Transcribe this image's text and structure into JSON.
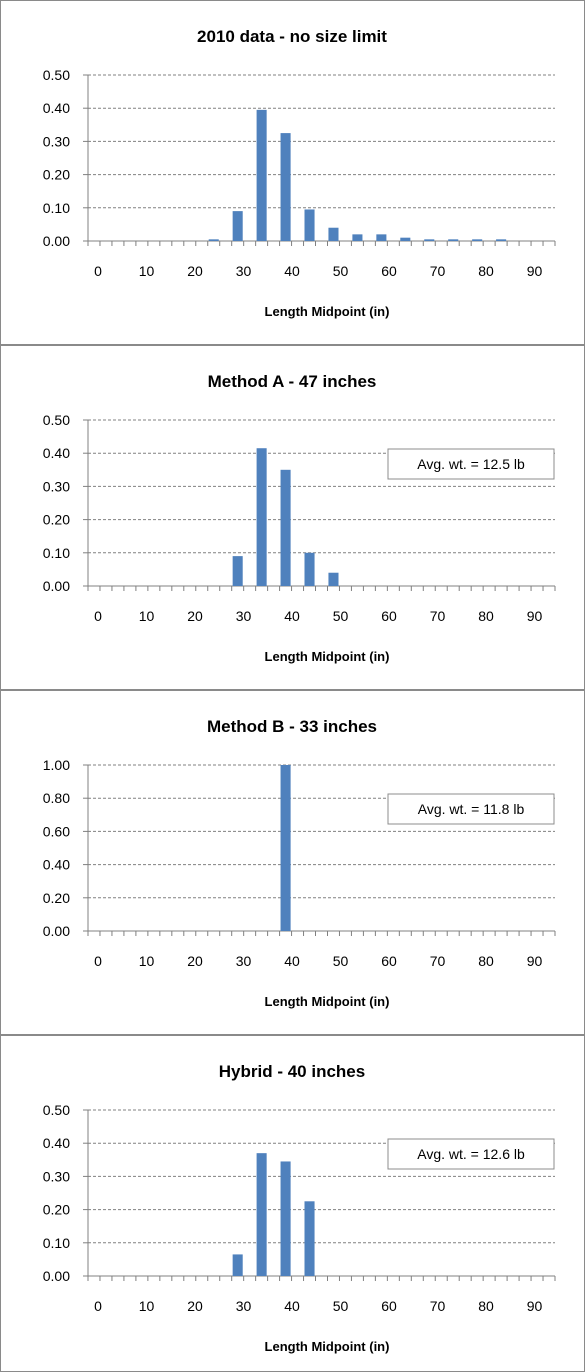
{
  "colors": {
    "bar": "#4f81bd",
    "grid": "#808080",
    "frame": "#8a8a8a"
  },
  "chart_data": [
    {
      "type": "bar",
      "title": "2010 data - no size limit",
      "xlabel": "Length Midpoint  (in)",
      "ylabel": "",
      "ylim": [
        0,
        0.5
      ],
      "yticks": [
        "0.00",
        "0.10",
        "0.20",
        "0.30",
        "0.40",
        "0.50"
      ],
      "xticks": [
        "0",
        "10",
        "20",
        "30",
        "40",
        "50",
        "60",
        "70",
        "80",
        "90"
      ],
      "x": [
        0,
        2.5,
        5,
        7.5,
        10,
        12.5,
        15,
        17.5,
        20,
        22.5,
        25,
        27.5,
        30,
        32.5,
        35,
        37.5,
        40,
        42.5,
        45,
        47.5,
        50,
        52.5,
        55,
        57.5,
        60,
        62.5,
        65,
        67.5,
        70,
        72.5,
        75,
        77.5,
        80,
        82.5,
        85,
        87.5,
        90,
        92.5,
        95
      ],
      "values": [
        0,
        0,
        0,
        0,
        0,
        0,
        0,
        0,
        0,
        0,
        0.005,
        0,
        0.09,
        0,
        0.395,
        0,
        0.325,
        0,
        0.095,
        0,
        0.04,
        0,
        0.02,
        0,
        0.02,
        0,
        0.01,
        0,
        0.005,
        0,
        0.005,
        0,
        0.005,
        0,
        0.005,
        0,
        0,
        0,
        0
      ],
      "annotation": ""
    },
    {
      "type": "bar",
      "title": "Method A - 47 inches",
      "xlabel": "Length Midpoint  (in)",
      "ylabel": "",
      "ylim": [
        0,
        0.5
      ],
      "yticks": [
        "0.00",
        "0.10",
        "0.20",
        "0.30",
        "0.40",
        "0.50"
      ],
      "xticks": [
        "0",
        "10",
        "20",
        "30",
        "40",
        "50",
        "60",
        "70",
        "80",
        "90"
      ],
      "values": [
        0,
        0,
        0,
        0,
        0,
        0,
        0,
        0,
        0,
        0,
        0,
        0,
        0.09,
        0,
        0.415,
        0,
        0.35,
        0,
        0.1,
        0,
        0.04,
        0,
        0,
        0,
        0,
        0,
        0,
        0,
        0,
        0,
        0,
        0,
        0,
        0,
        0,
        0,
        0,
        0,
        0
      ],
      "annotation": "Avg. wt.  = 12.5 lb"
    },
    {
      "type": "bar",
      "title": "Method B - 33 inches",
      "xlabel": "Length Midpoint  (in)",
      "ylabel": "",
      "ylim": [
        0,
        1.0
      ],
      "yticks": [
        "0.00",
        "0.20",
        "0.40",
        "0.60",
        "0.80",
        "1.00"
      ],
      "xticks": [
        "0",
        "10",
        "20",
        "30",
        "40",
        "50",
        "60",
        "70",
        "80",
        "90"
      ],
      "values": [
        0,
        0,
        0,
        0,
        0,
        0,
        0,
        0,
        0,
        0,
        0,
        0,
        0,
        0,
        0,
        0,
        1.0,
        0,
        0,
        0,
        0,
        0,
        0,
        0,
        0,
        0,
        0,
        0,
        0,
        0,
        0,
        0,
        0,
        0,
        0,
        0,
        0,
        0,
        0
      ],
      "annotation": "Avg. wt.  = 11.8 lb"
    },
    {
      "type": "bar",
      "title": "Hybrid - 40 inches",
      "xlabel": "Length Midpoint  (in)",
      "ylabel": "",
      "ylim": [
        0,
        0.5
      ],
      "yticks": [
        "0.00",
        "0.10",
        "0.20",
        "0.30",
        "0.40",
        "0.50"
      ],
      "xticks": [
        "0",
        "10",
        "20",
        "30",
        "40",
        "50",
        "60",
        "70",
        "80",
        "90"
      ],
      "values": [
        0,
        0,
        0,
        0,
        0,
        0,
        0,
        0,
        0,
        0,
        0,
        0,
        0.065,
        0,
        0.37,
        0,
        0.345,
        0,
        0.225,
        0,
        0,
        0,
        0,
        0,
        0,
        0,
        0,
        0,
        0,
        0,
        0,
        0,
        0,
        0,
        0,
        0,
        0,
        0,
        0
      ],
      "annotation": "Avg. wt.  = 12.6 lb"
    }
  ]
}
